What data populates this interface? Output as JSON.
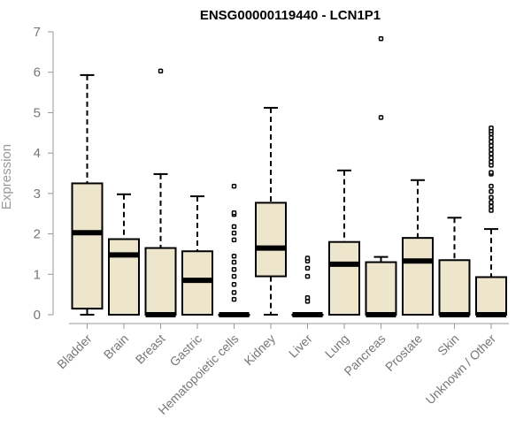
{
  "chart_data": {
    "type": "boxplot",
    "title": "ENSG00000119440 - LCN1P1",
    "xlabel": "",
    "ylabel": "Expression",
    "ylim": [
      0,
      7
    ],
    "yticks": [
      "0",
      "1",
      "2",
      "3",
      "4",
      "5",
      "6",
      "7"
    ],
    "box_color": "#ede6cd",
    "categories": [
      "Bladder",
      "Brain",
      "Breast",
      "Gastric",
      "Hematopoietic cells",
      "Kidney",
      "Liver",
      "Lung",
      "Pancreas",
      "Prostate",
      "Skin",
      "Unknown / Other"
    ],
    "boxes": [
      {
        "q1": 0.15,
        "median": 2.03,
        "q3": 3.25,
        "whisker_low": 0.0,
        "whisker_high": 5.93,
        "outliers": []
      },
      {
        "q1": 0.0,
        "median": 1.48,
        "q3": 1.87,
        "whisker_low": 0.0,
        "whisker_high": 2.98,
        "outliers": []
      },
      {
        "q1": 0.0,
        "median": 0.0,
        "q3": 1.65,
        "whisker_low": 0.0,
        "whisker_high": 3.48,
        "outliers": [
          6.03
        ]
      },
      {
        "q1": 0.0,
        "median": 0.85,
        "q3": 1.57,
        "whisker_low": 0.0,
        "whisker_high": 2.93,
        "outliers": []
      },
      {
        "q1": 0.0,
        "median": 0.0,
        "q3": 0.0,
        "whisker_low": 0.0,
        "whisker_high": 0.0,
        "outliers": [
          0.38,
          0.55,
          0.75,
          0.95,
          1.12,
          1.3,
          1.45,
          1.85,
          2.02,
          2.18,
          2.48,
          2.52,
          3.18
        ]
      },
      {
        "q1": 0.95,
        "median": 1.65,
        "q3": 2.77,
        "whisker_low": 0.0,
        "whisker_high": 5.12,
        "outliers": []
      },
      {
        "q1": 0.0,
        "median": 0.0,
        "q3": 0.0,
        "whisker_low": 0.0,
        "whisker_high": 0.0,
        "outliers": [
          0.33,
          0.42,
          0.95,
          1.15,
          1.33,
          1.4
        ]
      },
      {
        "q1": 0.0,
        "median": 1.25,
        "q3": 1.8,
        "whisker_low": 0.0,
        "whisker_high": 3.57,
        "outliers": []
      },
      {
        "q1": 0.0,
        "median": 0.0,
        "q3": 1.3,
        "whisker_low": 0.0,
        "whisker_high": 1.43,
        "outliers": [
          4.88,
          6.83
        ]
      },
      {
        "q1": 0.0,
        "median": 1.33,
        "q3": 1.9,
        "whisker_low": 0.0,
        "whisker_high": 3.33,
        "outliers": []
      },
      {
        "q1": 0.0,
        "median": 0.0,
        "q3": 1.35,
        "whisker_low": 0.0,
        "whisker_high": 2.4,
        "outliers": []
      },
      {
        "q1": 0.0,
        "median": 0.0,
        "q3": 0.93,
        "whisker_low": 0.0,
        "whisker_high": 2.12,
        "outliers": [
          2.58,
          2.68,
          2.78,
          2.9,
          3.05,
          3.18,
          3.48,
          3.52,
          3.7,
          3.78,
          3.88,
          3.98,
          4.08,
          4.18,
          4.28,
          4.38,
          4.48,
          4.55,
          4.62
        ]
      }
    ]
  }
}
